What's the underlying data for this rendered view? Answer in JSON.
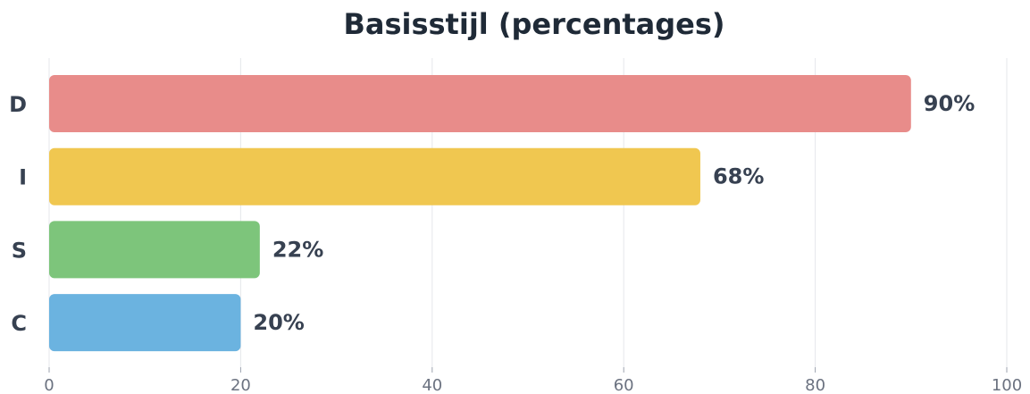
{
  "chart_data": {
    "type": "bar",
    "orientation": "horizontal",
    "title": "Basisstijl (percentages)",
    "categories": [
      "D",
      "I",
      "S",
      "C"
    ],
    "values": [
      90,
      68,
      22,
      20
    ],
    "value_labels": [
      "90%",
      "68%",
      "22%",
      "20%"
    ],
    "colors": [
      "#e88c8a",
      "#f0c750",
      "#7dc57b",
      "#6bb3e0"
    ],
    "xlim": [
      0,
      100
    ],
    "xticks": [
      0,
      20,
      40,
      60,
      80,
      100
    ],
    "grid": true
  }
}
